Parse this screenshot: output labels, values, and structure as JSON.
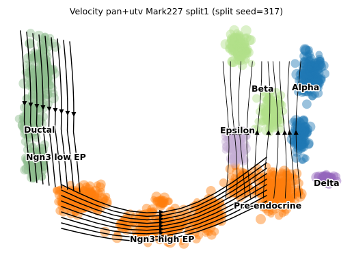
{
  "title": "Velocity pan+utv Mark227 split1 (split seed=317)",
  "chart_data": {
    "type": "scatter",
    "title": "Velocity pan+utv Mark227 split1 (split seed=317)",
    "xlabel": "",
    "ylabel": "",
    "axes_visible": false,
    "grid": false,
    "legend": "on data",
    "overlay": "velocity streamlines with arrowheads",
    "series": [
      {
        "name": "Ductal",
        "color": "#8fbc8f",
        "region": "left arm, upper"
      },
      {
        "name": "Ngn3 low EP",
        "color": "#8fbc8f",
        "region": "left arm, lower"
      },
      {
        "name": "Ngn3 high EP",
        "color": "#ff7f0e",
        "region": "bottom arc"
      },
      {
        "name": "Pre-endocrine",
        "color": "#ff7f0e",
        "region": "right arm, lower"
      },
      {
        "name": "Beta",
        "color": "#b2df8a",
        "region": "top right"
      },
      {
        "name": "Alpha",
        "color": "#1f77b4",
        "region": "far top right"
      },
      {
        "name": "Epsilon",
        "color": "#c5b0d5",
        "region": "middle right"
      },
      {
        "name": "Delta",
        "color": "#9467bd",
        "region": "right edge"
      }
    ]
  }
}
